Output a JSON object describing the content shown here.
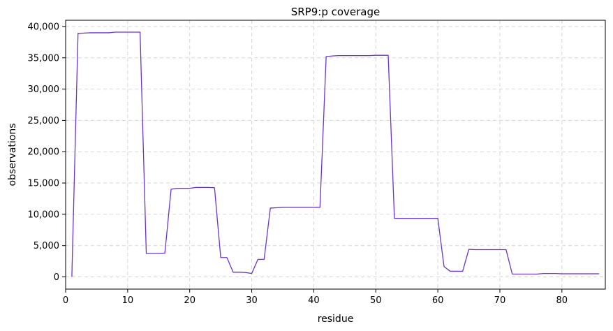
{
  "chart_data": {
    "type": "line",
    "title": "SRP9:p coverage",
    "xlabel": "residue",
    "ylabel": "observations",
    "xlim": [
      0,
      87
    ],
    "ylim": [
      -1950,
      41000
    ],
    "xticks": [
      0,
      10,
      20,
      30,
      40,
      50,
      60,
      70,
      80
    ],
    "yticks": [
      0,
      5000,
      10000,
      15000,
      20000,
      25000,
      30000,
      35000,
      40000
    ],
    "ytick_labels": [
      "0",
      "5,000",
      "10,000",
      "15,000",
      "20,000",
      "25,000",
      "30,000",
      "35,000",
      "40,000"
    ],
    "grid": true,
    "line_color": "#6a35c8",
    "series": [
      {
        "x": [
          1,
          2,
          3,
          4,
          5,
          6,
          7,
          8,
          9,
          10,
          11,
          12,
          13,
          14,
          15,
          16,
          17,
          18,
          19,
          20,
          21,
          22,
          23,
          24,
          25,
          26,
          27,
          28,
          29,
          30,
          31,
          32,
          33,
          34,
          35,
          36,
          37,
          38,
          39,
          40,
          41,
          42,
          43,
          44,
          45,
          46,
          47,
          48,
          49,
          50,
          51,
          52,
          53,
          54,
          55,
          56,
          57,
          58,
          59,
          60,
          61,
          62,
          63,
          64,
          65,
          66,
          67,
          68,
          69,
          70,
          71,
          72,
          73,
          74,
          75,
          76,
          77,
          78,
          79,
          80,
          81,
          82,
          83,
          84,
          85,
          86
        ],
        "values": [
          0,
          38900,
          38950,
          39000,
          39000,
          39000,
          39000,
          39100,
          39100,
          39100,
          39100,
          39100,
          3750,
          3750,
          3750,
          3800,
          14000,
          14150,
          14150,
          14150,
          14300,
          14300,
          14300,
          14250,
          3100,
          3100,
          750,
          750,
          700,
          550,
          2800,
          2800,
          11000,
          11050,
          11100,
          11100,
          11100,
          11100,
          11100,
          11100,
          11100,
          35200,
          35300,
          35350,
          35350,
          35350,
          35350,
          35350,
          35350,
          35400,
          35400,
          35400,
          9350,
          9350,
          9350,
          9350,
          9350,
          9350,
          9350,
          9350,
          1650,
          900,
          900,
          900,
          4400,
          4350,
          4350,
          4350,
          4350,
          4350,
          4350,
          450,
          450,
          450,
          450,
          450,
          550,
          550,
          550,
          500,
          500,
          500,
          500,
          500,
          500,
          500
        ]
      }
    ]
  }
}
